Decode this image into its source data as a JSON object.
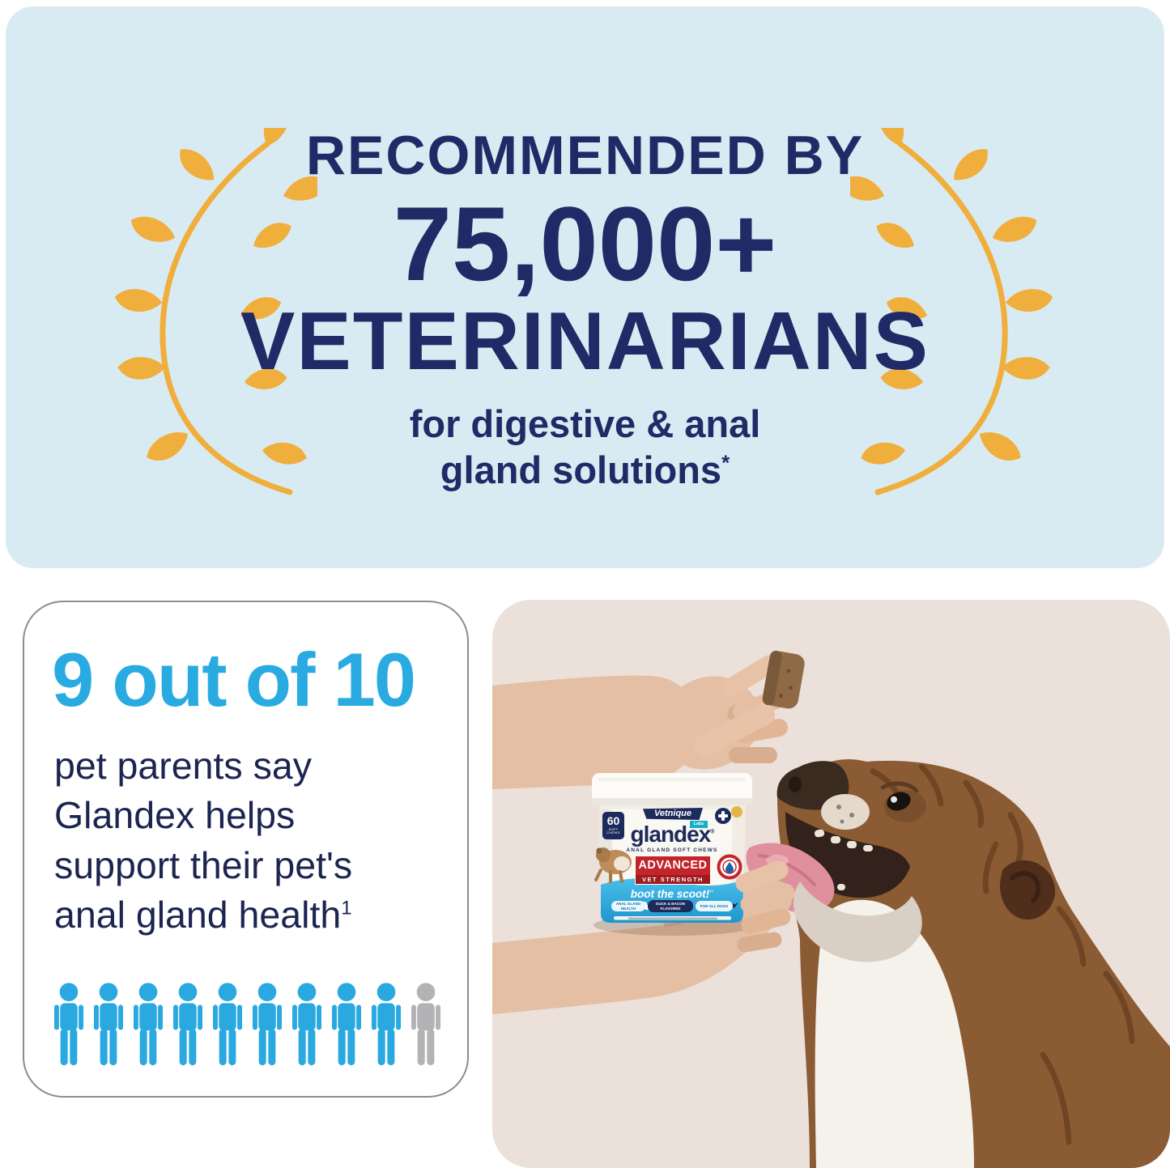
{
  "banner": {
    "bg_color": "#D9EBF2",
    "text_color": "#202A66",
    "laurel_color": "#F0AE3D",
    "line1": "RECOMMENDED BY",
    "line2": "75,000+",
    "line3": "VETERINARIANS",
    "subtitle_line1": "for digestive & anal",
    "subtitle_line2": "gland solutions",
    "subtitle_footnote_marker": "*"
  },
  "stat_card": {
    "headline": "9 out of 10",
    "headline_color": "#29ABE2",
    "body_lines": [
      "pet parents say",
      "Glandex helps",
      "support their pet's",
      "anal gland health"
    ],
    "body_footnote_marker": "1",
    "people_total": 10,
    "people_highlighted": 9,
    "person_color": "#29A9E0",
    "person_muted_color": "#B3B3B6"
  },
  "photo_panel": {
    "bg_color": "#EBE0DA",
    "jar": {
      "brand": "Vetnique",
      "brand_sub": "Labs",
      "count_badge": "60",
      "count_badge_sub": "SOFT CHEWS",
      "product": "glandex",
      "product_reg_mark": "®",
      "product_sub": "ANAL GLAND SOFT CHEWS",
      "claim_line1": "ADVANCED",
      "claim_line2": "VET STRENGTH",
      "tagline": "boot the scoot!",
      "tagline_tm_mark": "™",
      "chips": [
        "ANAL GLAND HEALTH",
        "DUCK & BACON FLAVORED",
        "FOR ALL DOGS"
      ]
    }
  }
}
